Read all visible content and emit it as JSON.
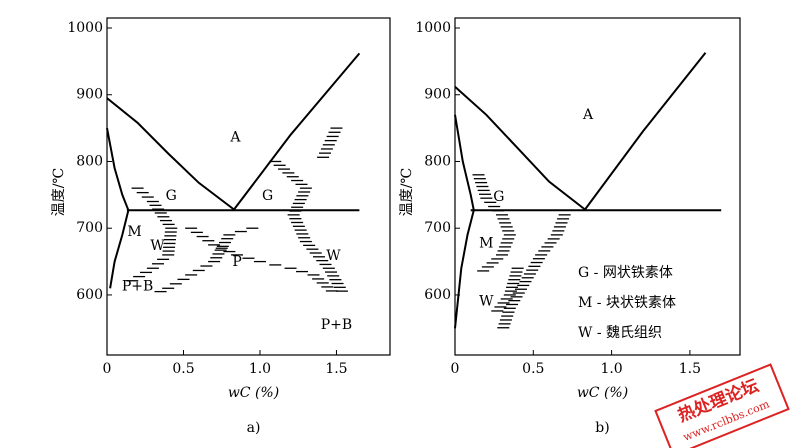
{
  "chart_data": [
    {
      "type": "line",
      "caption": "a)",
      "ylabel": "温度/℃",
      "xlabel": "wC (%)",
      "xlim": [
        0,
        1.85
      ],
      "ylim": [
        510,
        1015
      ],
      "xticks": [
        0,
        0.5,
        {
          "value": 1,
          "label": "1.0"
        },
        1.5
      ],
      "yticks": [
        600,
        700,
        800,
        900,
        1000
      ],
      "series": [
        {
          "color": "#000000",
          "x": [
            0,
            0.2,
            0.4,
            0.6,
            0.83
          ],
          "values": [
            895,
            858,
            812,
            768,
            728
          ]
        },
        {
          "color": "#000000",
          "x": [
            0.83,
            1.2,
            1.65
          ],
          "values": [
            728,
            840,
            962
          ]
        },
        {
          "color": "#000000",
          "x": [
            0.13,
            1.65
          ],
          "values": [
            727,
            727
          ]
        },
        {
          "color": "#000000",
          "x": [
            0,
            0.05,
            0.1,
            0.14,
            0.1,
            0.05,
            0.02
          ],
          "values": [
            850,
            790,
            750,
            727,
            690,
            650,
            610
          ]
        }
      ],
      "annotations": [
        "A",
        "G",
        "G",
        "M",
        "W",
        "P",
        "W",
        "P+B",
        "P+B"
      ]
    },
    {
      "type": "line",
      "caption": "b)",
      "ylabel": "温度/℃",
      "xlabel": "wC (%)",
      "xlim": [
        0,
        1.82
      ],
      "ylim": [
        510,
        1015
      ],
      "xticks": [
        0,
        0.5,
        {
          "value": 1,
          "label": "1.0"
        },
        1.5
      ],
      "yticks": [
        600,
        700,
        800,
        900,
        1000
      ],
      "series": [
        {
          "color": "#000000",
          "x": [
            0,
            0.2,
            0.4,
            0.6,
            0.83
          ],
          "values": [
            912,
            870,
            820,
            770,
            728
          ]
        },
        {
          "color": "#000000",
          "x": [
            0.83,
            1.2,
            1.6
          ],
          "values": [
            728,
            845,
            963
          ]
        },
        {
          "color": "#000000",
          "x": [
            0.1,
            1.7
          ],
          "values": [
            727,
            727
          ]
        },
        {
          "color": "#000000",
          "x": [
            0,
            0.05,
            0.1,
            0.12,
            0.08,
            0.04,
            0
          ],
          "values": [
            870,
            800,
            750,
            727,
            690,
            640,
            550
          ]
        }
      ],
      "annotations": [
        "A",
        "G",
        "M",
        "W"
      ],
      "legend": [
        "G - 网状铁素体",
        "M - 块状铁素体",
        "W - 魏氏组织"
      ]
    }
  ],
  "watermark": {
    "title": "热处理论坛",
    "url": "www.rclbbs.com"
  }
}
